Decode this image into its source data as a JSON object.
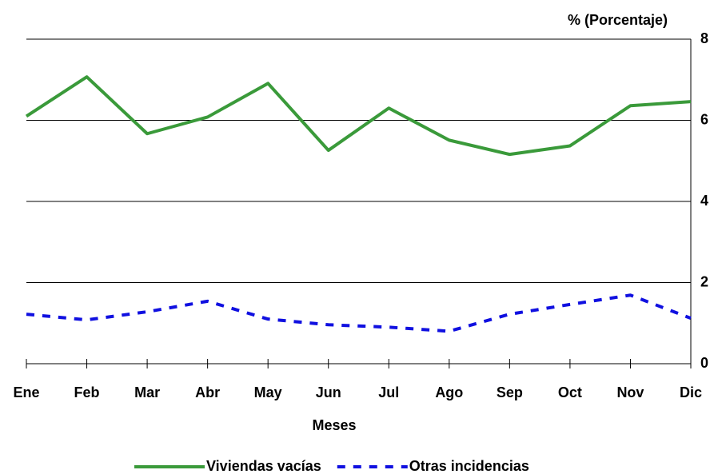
{
  "chart_data": {
    "type": "line",
    "y_axis_label": "% (Porcentaje)",
    "x_axis_label": "Meses",
    "categories": [
      "Ene",
      "Feb",
      "Mar",
      "Abr",
      "May",
      "Jun",
      "Jul",
      "Ago",
      "Sep",
      "Oct",
      "Nov",
      "Dic"
    ],
    "series": [
      {
        "name": "Viviendas vacías",
        "color": "#3a9a3a",
        "dash": "solid",
        "values": [
          6.1,
          7.07,
          5.67,
          6.08,
          6.91,
          5.26,
          6.3,
          5.51,
          5.16,
          5.37,
          6.36,
          6.46
        ]
      },
      {
        "name": "Otras incidencias",
        "color": "#1010e0",
        "dash": "dashed",
        "values": [
          1.22,
          1.08,
          1.28,
          1.54,
          1.1,
          0.96,
          0.9,
          0.8,
          1.22,
          1.46,
          1.69,
          1.12
        ]
      }
    ],
    "ylim": [
      0,
      8
    ],
    "yticks": [
      0,
      2,
      4,
      6,
      8
    ],
    "grid": true,
    "y_axis_side": "right",
    "legend": "bottom"
  }
}
